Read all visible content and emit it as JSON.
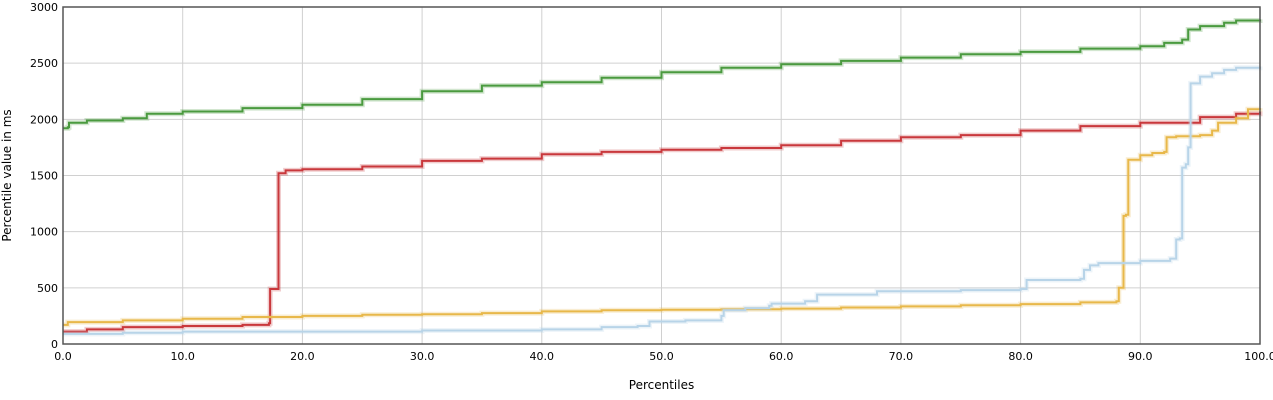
{
  "chart_data": {
    "type": "line",
    "xlabel": "Percentiles",
    "ylabel": "Percentile value in ms",
    "xlim": [
      0,
      100
    ],
    "ylim": [
      0,
      3000
    ],
    "x_ticks": [
      "0.0",
      "10.0",
      "20.0",
      "30.0",
      "40.0",
      "50.0",
      "60.0",
      "70.0",
      "80.0",
      "90.0",
      "100.0"
    ],
    "y_ticks": [
      "0",
      "500",
      "1000",
      "1500",
      "2000",
      "2500",
      "3000"
    ],
    "grid": true,
    "series": [
      {
        "color": "#4a9a3f",
        "points": [
          [
            0,
            1920
          ],
          [
            0.4,
            1930
          ],
          [
            0.5,
            1970
          ],
          [
            2,
            1990
          ],
          [
            5,
            2010
          ],
          [
            7,
            2050
          ],
          [
            10,
            2070
          ],
          [
            15,
            2100
          ],
          [
            20,
            2130
          ],
          [
            25,
            2180
          ],
          [
            30,
            2250
          ],
          [
            35,
            2300
          ],
          [
            40,
            2330
          ],
          [
            45,
            2370
          ],
          [
            50,
            2420
          ],
          [
            55,
            2460
          ],
          [
            60,
            2490
          ],
          [
            65,
            2520
          ],
          [
            70,
            2550
          ],
          [
            75,
            2580
          ],
          [
            80,
            2600
          ],
          [
            85,
            2630
          ],
          [
            90,
            2650
          ],
          [
            92,
            2680
          ],
          [
            93.5,
            2710
          ],
          [
            94,
            2800
          ],
          [
            95,
            2830
          ],
          [
            97,
            2860
          ],
          [
            98,
            2880
          ],
          [
            100,
            2890
          ]
        ]
      },
      {
        "color": "#c9383c",
        "points": [
          [
            0,
            110
          ],
          [
            2,
            130
          ],
          [
            5,
            150
          ],
          [
            10,
            160
          ],
          [
            15,
            170
          ],
          [
            17.2,
            185
          ],
          [
            17.3,
            490
          ],
          [
            17.9,
            490
          ],
          [
            18,
            1520
          ],
          [
            18.6,
            1545
          ],
          [
            20,
            1555
          ],
          [
            25,
            1580
          ],
          [
            30,
            1630
          ],
          [
            35,
            1650
          ],
          [
            40,
            1690
          ],
          [
            45,
            1710
          ],
          [
            50,
            1730
          ],
          [
            55,
            1745
          ],
          [
            60,
            1770
          ],
          [
            65,
            1810
          ],
          [
            70,
            1840
          ],
          [
            75,
            1860
          ],
          [
            80,
            1900
          ],
          [
            85,
            1940
          ],
          [
            90,
            1970
          ],
          [
            95,
            2020
          ],
          [
            98,
            2050
          ],
          [
            100,
            2070
          ]
        ]
      },
      {
        "color": "#e8b84a",
        "points": [
          [
            0,
            170
          ],
          [
            0.4,
            195
          ],
          [
            5,
            210
          ],
          [
            10,
            225
          ],
          [
            15,
            240
          ],
          [
            20,
            250
          ],
          [
            25,
            260
          ],
          [
            30,
            265
          ],
          [
            35,
            275
          ],
          [
            40,
            290
          ],
          [
            45,
            300
          ],
          [
            50,
            305
          ],
          [
            55,
            310
          ],
          [
            60,
            315
          ],
          [
            65,
            325
          ],
          [
            70,
            335
          ],
          [
            75,
            345
          ],
          [
            80,
            355
          ],
          [
            85,
            370
          ],
          [
            88,
            380
          ],
          [
            88.2,
            500
          ],
          [
            88.5,
            500
          ],
          [
            88.6,
            1140
          ],
          [
            88.8,
            1150
          ],
          [
            89,
            1640
          ],
          [
            90,
            1680
          ],
          [
            91,
            1700
          ],
          [
            92,
            1710
          ],
          [
            92.2,
            1840
          ],
          [
            93,
            1850
          ],
          [
            95,
            1860
          ],
          [
            96,
            1900
          ],
          [
            96.5,
            1970
          ],
          [
            98,
            2010
          ],
          [
            99,
            2090
          ],
          [
            100,
            2100
          ]
        ]
      },
      {
        "color": "#b8d4e8",
        "points": [
          [
            0,
            90
          ],
          [
            5,
            100
          ],
          [
            10,
            110
          ],
          [
            20,
            110
          ],
          [
            30,
            120
          ],
          [
            40,
            130
          ],
          [
            45,
            150
          ],
          [
            48,
            160
          ],
          [
            49,
            200
          ],
          [
            52,
            210
          ],
          [
            55,
            250
          ],
          [
            55.2,
            300
          ],
          [
            57,
            320
          ],
          [
            59,
            340
          ],
          [
            59.2,
            360
          ],
          [
            62,
            380
          ],
          [
            63,
            440
          ],
          [
            68,
            470
          ],
          [
            75,
            480
          ],
          [
            80,
            490
          ],
          [
            80.5,
            570
          ],
          [
            85,
            580
          ],
          [
            85.3,
            660
          ],
          [
            85.8,
            700
          ],
          [
            86.5,
            720
          ],
          [
            90,
            740
          ],
          [
            92.5,
            760
          ],
          [
            93,
            930
          ],
          [
            93.3,
            940
          ],
          [
            93.5,
            1570
          ],
          [
            93.8,
            1600
          ],
          [
            94,
            1750
          ],
          [
            94.2,
            2320
          ],
          [
            95,
            2380
          ],
          [
            96,
            2410
          ],
          [
            97,
            2440
          ],
          [
            98,
            2460
          ],
          [
            100,
            2470
          ]
        ]
      }
    ]
  }
}
